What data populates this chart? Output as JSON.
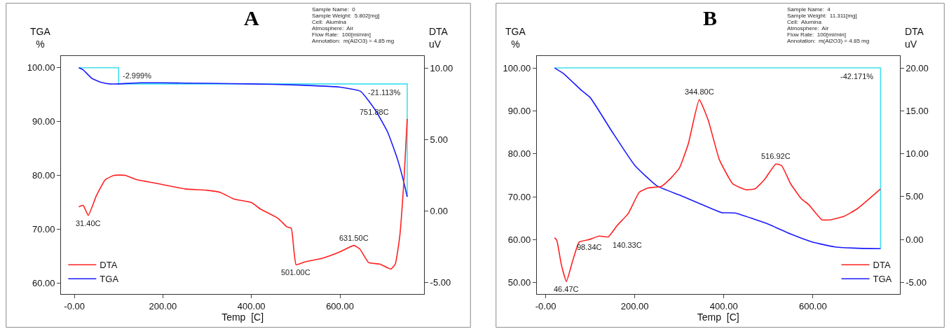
{
  "chart_data": [
    {
      "type": "line",
      "title": "A",
      "xlabel": "Temp  [C]",
      "ylabel": "TGA\n%",
      "y2label": "DTA\nuV",
      "legend": "bottom left",
      "xlim": [
        -30,
        790
      ],
      "xticks": [
        {
          "value": 0,
          "label": "-0.00"
        },
        {
          "value": 200,
          "label": "200.00"
        },
        {
          "value": 400,
          "label": "400.00"
        },
        {
          "value": 600,
          "label": "600.00"
        }
      ],
      "ylim": [
        57.9,
        102.2
      ],
      "yticks": [
        {
          "value": 60,
          "label": "60.00"
        },
        {
          "value": 70,
          "label": "70.00"
        },
        {
          "value": 80,
          "label": "80.00"
        },
        {
          "value": 90,
          "label": "90.00"
        },
        {
          "value": 100,
          "label": "100.00"
        }
      ],
      "y2lim": [
        -5.8,
        10.84
      ],
      "y2ticks": [
        {
          "value": -5,
          "label": "-5.00"
        },
        {
          "value": 0,
          "label": "0.00"
        },
        {
          "value": 5,
          "label": "5.00"
        },
        {
          "value": 10,
          "label": "10.00"
        }
      ],
      "series": [
        {
          "name": "DTA",
          "color": "#ff2020",
          "axis": "y2",
          "x": [
            10,
            20,
            31.4,
            50,
            70,
            90,
            115,
            140,
            200,
            250,
            300,
            330,
            360,
            400,
            420,
            460,
            480,
            490,
            501,
            520,
            560,
            600,
            631.5,
            645,
            665,
            690,
            715,
            725,
            735,
            745,
            752
          ],
          "values": [
            0.3,
            0.4,
            -0.3,
            1.1,
            2.2,
            2.5,
            2.5,
            2.2,
            1.85,
            1.55,
            1.45,
            1.3,
            0.85,
            0.6,
            0.15,
            -0.5,
            -1.1,
            -1.2,
            -3.75,
            -3.55,
            -3.3,
            -2.85,
            -2.4,
            -2.65,
            -3.6,
            -3.7,
            -4.05,
            -3.7,
            -1.8,
            2.35,
            6.45
          ]
        },
        {
          "name": "TGA",
          "color": "#1a1aff",
          "axis": "y",
          "x": [
            10,
            20,
            40,
            60,
            80,
            100,
            150,
            200,
            300,
            400,
            500,
            600,
            647,
            681,
            708,
            730,
            745,
            752
          ],
          "values": [
            100,
            99.6,
            98,
            97.3,
            97.0,
            97.0,
            97.2,
            97.2,
            97.1,
            97.0,
            96.8,
            96.4,
            95.6,
            92,
            88,
            83,
            78.5,
            76
          ]
        },
        {
          "color": "#40e0f0",
          "axis": "y",
          "x": [
            10,
            100,
            100,
            752,
            752
          ],
          "values": [
            100,
            100,
            97,
            97,
            76
          ]
        }
      ],
      "annotations": [
        "Sample Name:  0",
        "Sample Weight:  5.802[mg]",
        "Cell:  Alumina",
        "Atmosphere:  Air",
        "Flow Rate:  100[ml/min]",
        "Annotation:  m(Al2O3) = 4.85 mg",
        {
          "text": "-2.999%",
          "x": 100,
          "y": 98.5
        },
        {
          "text": "-21.113%",
          "x": 745,
          "y": 97
        },
        {
          "text": "751.88C",
          "x": 752,
          "y": 90.5
        },
        {
          "text": "31.40C",
          "x": 31.4,
          "y": 72.5
        },
        {
          "text": "501.00C",
          "x": 501,
          "y": 63.4
        },
        {
          "text": "631.50C",
          "x": 631.5,
          "y": 66.9
        }
      ]
    },
    {
      "type": "line",
      "title": "B",
      "xlabel": "Temp  [C]",
      "ylabel": "TGA\n%",
      "y2label": "DTA\nuV",
      "legend": "bottom right",
      "xlim": [
        -20,
        795
      ],
      "xticks": [
        {
          "value": 0,
          "label": "-0.00"
        },
        {
          "value": 200,
          "label": "200.00"
        },
        {
          "value": 400,
          "label": "400.00"
        },
        {
          "value": 600,
          "label": "600.00"
        }
      ],
      "ylim": [
        47.3,
        102.8
      ],
      "yticks": [
        {
          "value": 50,
          "label": "50.00"
        },
        {
          "value": 60,
          "label": "60.00"
        },
        {
          "value": 70,
          "label": "70.00"
        },
        {
          "value": 80,
          "label": "80.00"
        },
        {
          "value": 90,
          "label": "90.00"
        },
        {
          "value": 100,
          "label": "100.00"
        }
      ],
      "y2lim": [
        -6.37,
        21.4
      ],
      "y2ticks": [
        {
          "value": -5,
          "label": "-5.00"
        },
        {
          "value": 0,
          "label": "0.00"
        },
        {
          "value": 5,
          "label": "5.00"
        },
        {
          "value": 10,
          "label": "10.00"
        },
        {
          "value": 15,
          "label": "15.00"
        },
        {
          "value": 20,
          "label": "20.00"
        }
      ],
      "series": [
        {
          "name": "DTA",
          "color": "#ff2020",
          "axis": "y2",
          "x": [
            20,
            25,
            35,
            46.47,
            60,
            75,
            98.34,
            120,
            140.33,
            160,
            185,
            210,
            230,
            260,
            280,
            300,
            320,
            344.8,
            365,
            390,
            420,
            450,
            470,
            490,
            516.92,
            530,
            550,
            575,
            590,
            620,
            640,
            670,
            700,
            752
          ],
          "values": [
            0.2,
            -0.1,
            -2.9,
            -4.9,
            -2.6,
            -0.3,
            0.0,
            0.4,
            0.3,
            1.6,
            3.0,
            5.5,
            6.0,
            6.2,
            7.1,
            8.3,
            11.1,
            16.3,
            13.9,
            9.3,
            6.5,
            5.8,
            5.9,
            6.9,
            8.8,
            8.6,
            6.5,
            4.7,
            4.1,
            2.3,
            2.3,
            2.7,
            3.6,
            5.9
          ]
        },
        {
          "name": "TGA",
          "color": "#1a1aff",
          "axis": "y",
          "x": [
            20,
            40,
            80,
            100,
            150,
            200,
            250,
            300,
            350,
            395,
            425,
            500,
            550,
            600,
            650,
            700,
            752
          ],
          "values": [
            100,
            98.7,
            94.8,
            93.1,
            85.0,
            77.3,
            72.5,
            70.4,
            68.2,
            66.3,
            66.2,
            63.6,
            61.3,
            59.4,
            58.3,
            58.0,
            57.9
          ]
        },
        {
          "color": "#40e0f0",
          "axis": "y",
          "x": [
            20,
            752,
            752
          ],
          "values": [
            100,
            100,
            57.9
          ]
        }
      ],
      "annotations": [
        "Sample Name:  4",
        "Sample Weight:  11.311[mg]",
        "Cell:  Alumina",
        "Atmosphere:  Air",
        "Flow Rate:  100[ml/min]",
        "Annotation:  m(Al2O3) = 4.85 mg",
        {
          "text": "-42.171%",
          "x": 745,
          "y": 100
        },
        {
          "text": "46.47C",
          "x": 46.47,
          "y": 50.2
        },
        {
          "text": "98.34C",
          "x": 98.34,
          "y": 60.1
        },
        {
          "text": "140.33C",
          "x": 140.33,
          "y": 60.6
        },
        {
          "text": "344.80C",
          "x": 344.8,
          "y": 92.7
        },
        {
          "text": "516.92C",
          "x": 516.92,
          "y": 77.6
        }
      ]
    }
  ]
}
